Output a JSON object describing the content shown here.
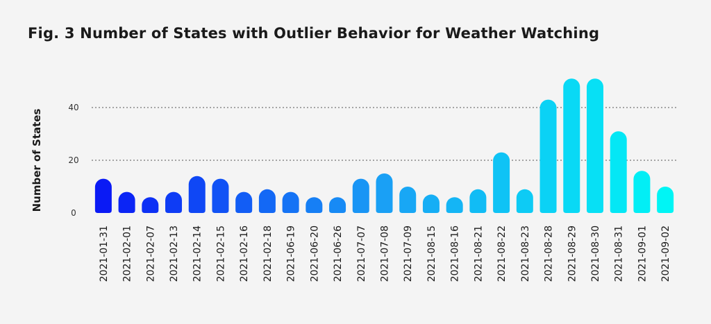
{
  "title": "Fig. 3 Number of States with Outlier Behavior for Weather Watching",
  "chart_data": {
    "type": "bar",
    "title": "Fig. 3 Number of States with Outlier Behavior for Weather Watching",
    "xlabel": "",
    "ylabel": "Number of States",
    "ylim": [
      0,
      50
    ],
    "yticks": [
      0,
      20,
      40
    ],
    "grid": true,
    "categories": [
      "2021-01-31",
      "2021-02-01",
      "2021-02-07",
      "2021-02-13",
      "2021-02-14",
      "2021-02-15",
      "2021-02-16",
      "2021-02-18",
      "2021-06-19",
      "2021-06-20",
      "2021-06-26",
      "2021-07-07",
      "2021-07-08",
      "2021-07-09",
      "2021-08-15",
      "2021-08-16",
      "2021-08-21",
      "2021-08-22",
      "2021-08-23",
      "2021-08-28",
      "2021-08-29",
      "2021-08-30",
      "2021-08-31",
      "2021-09-01",
      "2021-09-02"
    ],
    "values": [
      13,
      8,
      6,
      8,
      14,
      13,
      8,
      9,
      8,
      6,
      6,
      13,
      15,
      10,
      7,
      6,
      9,
      23,
      9,
      43,
      51,
      51,
      31,
      16,
      10
    ],
    "colors": {
      "gradient_start": "#0a1af5",
      "gradient_mid": "#1aa0f5",
      "gradient_end": "#00f5f5"
    }
  }
}
